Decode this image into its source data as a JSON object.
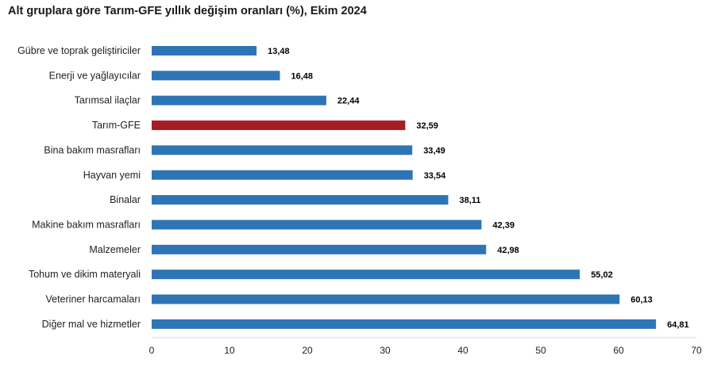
{
  "chart_data": {
    "type": "bar",
    "orientation": "horizontal",
    "title": "Alt gruplara göre Tarım-GFE yıllık değişim oranları (%), Ekim 2024",
    "categories": [
      "Gübre ve toprak geliştiriciler",
      "Enerji  ve yağlayıcılar",
      "Tarımsal ilaçlar",
      "Tarım-GFE",
      "Bina bakım masrafları",
      "Hayvan yemi",
      "Binalar",
      "Makine bakım masrafları",
      "Malzemeler",
      "Tohum ve dikim materyali",
      "Veteriner harcamaları",
      "Diğer mal ve hizmetler"
    ],
    "values": [
      13.48,
      16.48,
      22.44,
      32.59,
      33.49,
      33.54,
      38.11,
      42.39,
      42.98,
      55.02,
      60.13,
      64.81
    ],
    "value_labels": [
      "13,48",
      "16,48",
      "22,44",
      "32,59",
      "33,49",
      "33,54",
      "38,11",
      "42,39",
      "42,98",
      "55,02",
      "60,13",
      "64,81"
    ],
    "highlight_index": 3,
    "xlim": [
      0,
      70
    ],
    "x_ticks": [
      "0",
      "10",
      "20",
      "30",
      "40",
      "50",
      "60",
      "70"
    ],
    "grid": false,
    "legend": "none",
    "colors": {
      "bar": "#2e75b6",
      "highlight": "#a61c24",
      "axis": "#d9d9d9"
    }
  }
}
